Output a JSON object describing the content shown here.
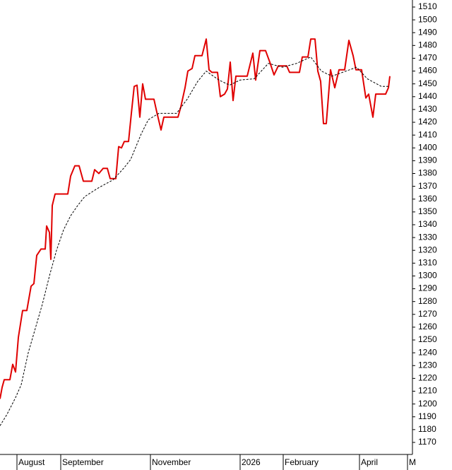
{
  "chart_data": {
    "type": "line",
    "xlim": [
      0,
      584
    ],
    "xticks": [
      {
        "value": 24,
        "label": "August"
      },
      {
        "value": 86,
        "label": "September"
      },
      {
        "value": 213,
        "label": "November"
      },
      {
        "value": 340,
        "label": "2026"
      },
      {
        "value": 401,
        "label": "February"
      },
      {
        "value": 509,
        "label": "April"
      },
      {
        "value": 577,
        "label": "M"
      }
    ],
    "ylim": [
      1160.6,
      1515.5
    ],
    "yticks": [
      1170,
      1180,
      1190,
      1200,
      1210,
      1220,
      1230,
      1240,
      1250,
      1260,
      1270,
      1280,
      1290,
      1300,
      1310,
      1320,
      1330,
      1340,
      1350,
      1360,
      1370,
      1380,
      1390,
      1400,
      1410,
      1420,
      1430,
      1440,
      1450,
      1460,
      1470,
      1480,
      1490,
      1500,
      1510
    ],
    "grid": false,
    "series": [
      {
        "color": "#e00000",
        "dash": false,
        "x": [
          0,
          3,
          6,
          14,
          18,
          22,
          26,
          32,
          38,
          44,
          48,
          52,
          58,
          64,
          66,
          70,
          72,
          74,
          78,
          82,
          96,
          100,
          106,
          112,
          118,
          130,
          134,
          140,
          146,
          152,
          156,
          164,
          168,
          172,
          176,
          182,
          186,
          190,
          194,
          198,
          202,
          206,
          218,
          222,
          228,
          232,
          252,
          256,
          262,
          266,
          272,
          276,
          286,
          292,
          296,
          300,
          308,
          312,
          318,
          322,
          326,
          330,
          334,
          350,
          358,
          362,
          368,
          376,
          382,
          388,
          394,
          406,
          410,
          424,
          428,
          436,
          440,
          446,
          450,
          454,
          458,
          462,
          468,
          474,
          480,
          488,
          494,
          500,
          504,
          512,
          518,
          522,
          528,
          532,
          546,
          550,
          552
        ],
        "values": [
          1204,
          1213,
          1219,
          1219,
          1231,
          1225,
          1252,
          1273,
          1273,
          1292,
          1294,
          1316,
          1321,
          1321,
          1339,
          1334,
          1313,
          1355,
          1364,
          1364,
          1364,
          1378,
          1386,
          1386,
          1374,
          1374,
          1383,
          1380,
          1384,
          1384,
          1376,
          1376,
          1401,
          1400,
          1405,
          1405,
          1427,
          1448,
          1449,
          1424,
          1450,
          1438,
          1438,
          1428,
          1414,
          1424,
          1424,
          1432,
          1447,
          1460,
          1462,
          1472,
          1472,
          1485,
          1461,
          1459,
          1459,
          1440,
          1442,
          1446,
          1467,
          1437,
          1456,
          1456,
          1474,
          1453,
          1476,
          1476,
          1467,
          1457,
          1464,
          1464,
          1459,
          1459,
          1471,
          1471,
          1485,
          1485,
          1460,
          1452,
          1419,
          1419,
          1461,
          1447,
          1461,
          1461,
          1484,
          1472,
          1461,
          1461,
          1439,
          1442,
          1424,
          1442,
          1442,
          1447,
          1456
        ]
      },
      {
        "color": "#000000",
        "dash": true,
        "x": [
          0,
          10,
          22,
          30,
          40,
          50,
          60,
          70,
          80,
          90,
          100,
          110,
          120,
          140,
          160,
          175,
          185,
          200,
          210,
          225,
          250,
          265,
          280,
          292,
          310,
          325,
          340,
          360,
          380,
          400,
          420,
          440,
          455,
          470,
          490,
          505,
          520,
          540,
          550
        ],
        "values": [
          1183,
          1192,
          1205,
          1215,
          1240,
          1259,
          1278,
          1300,
          1320,
          1336,
          1347,
          1355,
          1362,
          1369,
          1375,
          1384,
          1391,
          1411,
          1422,
          1427,
          1427,
          1438,
          1452,
          1460,
          1453,
          1449,
          1453,
          1454,
          1466,
          1463,
          1466,
          1471,
          1460,
          1456,
          1460,
          1463,
          1454,
          1448,
          1448
        ]
      }
    ]
  }
}
